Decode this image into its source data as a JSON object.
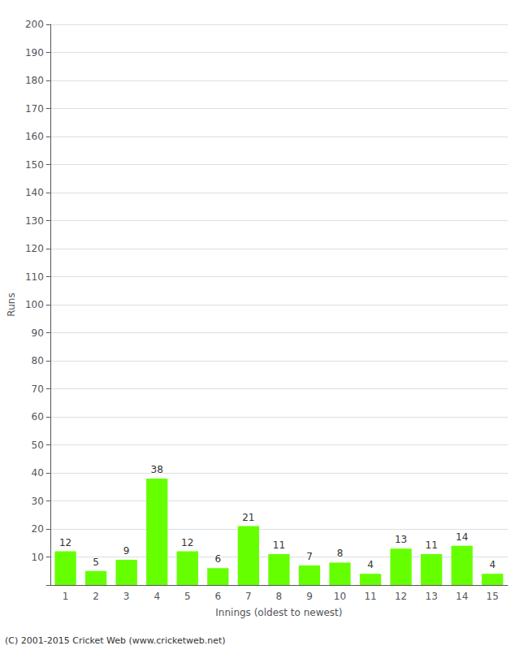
{
  "chart_data": {
    "type": "bar",
    "categories": [
      "1",
      "2",
      "3",
      "4",
      "5",
      "6",
      "7",
      "8",
      "9",
      "10",
      "11",
      "12",
      "13",
      "14",
      "15"
    ],
    "values": [
      12,
      5,
      9,
      38,
      12,
      6,
      21,
      11,
      7,
      8,
      4,
      13,
      11,
      14,
      4
    ],
    "color": "#66ff00",
    "xlabel": "Innings (oldest to newest)",
    "ylabel": "Runs",
    "ylim": [
      0,
      200
    ],
    "yticks": [
      10,
      20,
      30,
      40,
      50,
      60,
      70,
      80,
      90,
      100,
      110,
      120,
      130,
      140,
      150,
      160,
      170,
      180,
      190,
      200
    ],
    "grid": true,
    "data_labels": true,
    "annotation": "(C) 2001-2015 Cricket Web (www.cricketweb.net)"
  }
}
